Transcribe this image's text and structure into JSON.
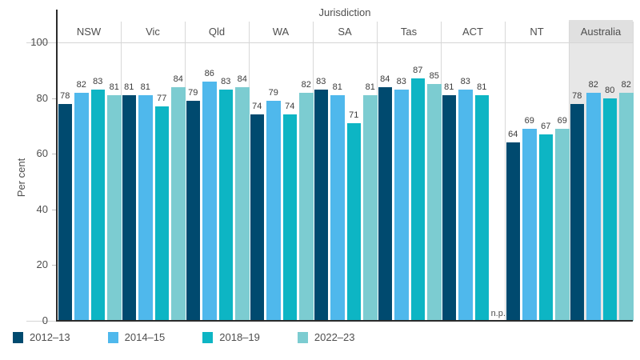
{
  "chart_data": {
    "type": "bar",
    "title": "Jurisdiction",
    "ylabel": "Per cent",
    "ylim": [
      0,
      100
    ],
    "yticks": [
      0,
      20,
      40,
      60,
      80,
      100
    ],
    "grid": "off",
    "legend_position": "bottom",
    "categories": [
      "NSW",
      "Vic",
      "Qld",
      "WA",
      "SA",
      "Tas",
      "ACT",
      "NT",
      "Australia"
    ],
    "series": [
      {
        "name": "2012–13",
        "color": "#004a6f",
        "values": [
          78,
          81,
          79,
          74,
          83,
          84,
          81,
          64,
          78
        ]
      },
      {
        "name": "2014–15",
        "color": "#4fb8ec",
        "values": [
          82,
          81,
          86,
          79,
          81,
          83,
          83,
          69,
          82
        ]
      },
      {
        "name": "2018–19",
        "color": "#0db5c4",
        "values": [
          83,
          77,
          83,
          74,
          71,
          87,
          81,
          67,
          80
        ]
      },
      {
        "name": "2022–23",
        "color": "#7cccd1",
        "values": [
          81,
          84,
          84,
          82,
          81,
          85,
          null,
          69,
          82
        ]
      }
    ],
    "null_label": "n.p.",
    "highlight_category": "Australia",
    "highlight_color": "#e7e7e7"
  }
}
